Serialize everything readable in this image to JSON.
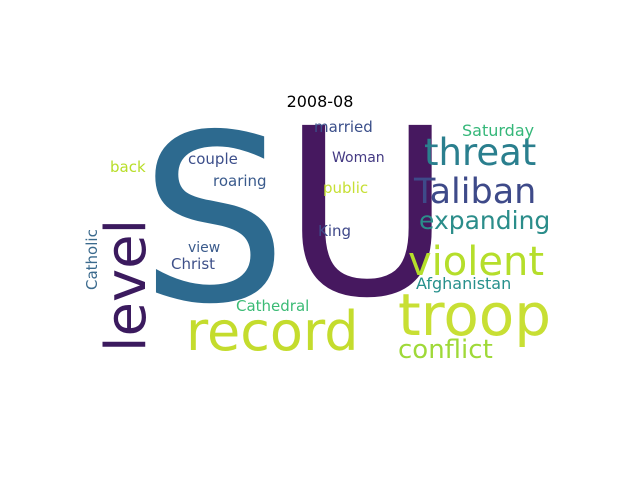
{
  "title": "2008-08",
  "words": [
    {
      "text": "SU",
      "color": "#2d6a8f"
    },
    {
      "text": "U",
      "color": "#46185f"
    },
    {
      "text": "level",
      "color": "#3b1a5e"
    },
    {
      "text": "record",
      "color": "#c4dc2d"
    },
    {
      "text": "troop",
      "color": "#c8df34"
    },
    {
      "text": "threat",
      "color": "#2a7f8e"
    },
    {
      "text": "Taliban",
      "color": "#3e4a89"
    },
    {
      "text": "expanding",
      "color": "#2b8d8a"
    },
    {
      "text": "violent",
      "color": "#b5de2b"
    },
    {
      "text": "conflict",
      "color": "#9fd938"
    },
    {
      "text": "Afghanistan",
      "color": "#26908c"
    },
    {
      "text": "Saturday",
      "color": "#35b779"
    },
    {
      "text": "married",
      "color": "#3b4f8a"
    },
    {
      "text": "Woman",
      "color": "#443a83"
    },
    {
      "text": "public",
      "color": "#c6df34"
    },
    {
      "text": "King",
      "color": "#3f4889"
    },
    {
      "text": "couple",
      "color": "#3c4e8a"
    },
    {
      "text": "roaring",
      "color": "#3a5a8c"
    },
    {
      "text": "back",
      "color": "#b8de29"
    },
    {
      "text": "view",
      "color": "#3b5b8c"
    },
    {
      "text": "Christ",
      "color": "#3e5089"
    },
    {
      "text": "Catholic",
      "color": "#3b6a8d"
    },
    {
      "text": "Cathedral",
      "color": "#3bbb75"
    }
  ]
}
